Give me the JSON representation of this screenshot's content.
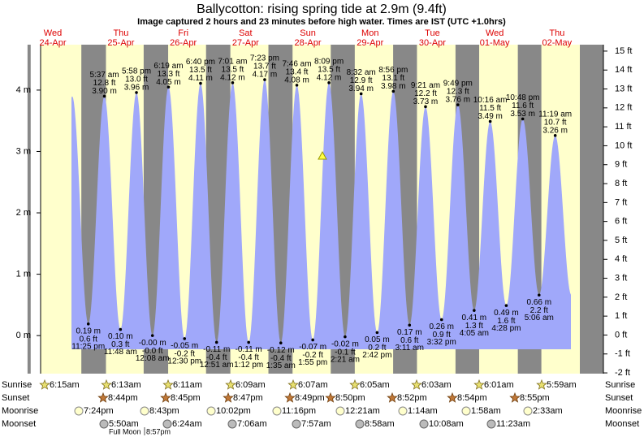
{
  "chart_data": {
    "type": "tide",
    "title": "Ballycotton: rising  spring tide at 2.9m (9.4ft)",
    "subtitle": "Image captured 2 hours and 23 minutes before high water. Times are IST (UTC +1.0hrs)",
    "days": [
      {
        "weekday": "Wed",
        "date": "24-Apr"
      },
      {
        "weekday": "Thu",
        "date": "25-Apr"
      },
      {
        "weekday": "Fri",
        "date": "26-Apr"
      },
      {
        "weekday": "Sat",
        "date": "27-Apr"
      },
      {
        "weekday": "Sun",
        "date": "28-Apr"
      },
      {
        "weekday": "Mon",
        "date": "29-Apr"
      },
      {
        "weekday": "Tue",
        "date": "30-Apr"
      },
      {
        "weekday": "Wed",
        "date": "01-May"
      },
      {
        "weekday": "Thu",
        "date": "02-May"
      }
    ],
    "tides": [
      {
        "time": "11:25 pm",
        "m": 0.19,
        "m_label": "0.19 m",
        "ft_label": "0.6 ft"
      },
      {
        "time": "5:37 am",
        "m": 3.9,
        "m_label": "3.90 m",
        "ft_label": "12.8 ft"
      },
      {
        "time": "11:48 am",
        "m": 0.1,
        "m_label": "0.10 m",
        "ft_label": "0.3 ft"
      },
      {
        "time": "5:58 pm",
        "m": 3.96,
        "m_label": "3.96 m",
        "ft_label": "13.0 ft"
      },
      {
        "time": "12:08 am",
        "m": 0,
        "m_label": "-0.00 m",
        "ft_label": "-0.0 ft"
      },
      {
        "time": "6:19 am",
        "m": 4.05,
        "m_label": "4.05 m",
        "ft_label": "13.3 ft"
      },
      {
        "time": "12:30 pm",
        "m": -0.05,
        "m_label": "-0.05 m",
        "ft_label": "-0.2 ft"
      },
      {
        "time": "6:40 pm",
        "m": 4.11,
        "m_label": "4.11 m",
        "ft_label": "13.5 ft"
      },
      {
        "time": "12:51 am",
        "m": -0.11,
        "m_label": "-0.11 m",
        "ft_label": "-0.4 ft"
      },
      {
        "time": "7:01 am",
        "m": 4.12,
        "m_label": "4.12 m",
        "ft_label": "13.5 ft"
      },
      {
        "time": "1:12 pm",
        "m": -0.11,
        "m_label": "-0.11 m",
        "ft_label": "-0.4 ft"
      },
      {
        "time": "7:23 pm",
        "m": 4.17,
        "m_label": "4.17 m",
        "ft_label": "13.7 ft"
      },
      {
        "time": "1:35 am",
        "m": -0.12,
        "m_label": "-0.12 m",
        "ft_label": "-0.4 ft"
      },
      {
        "time": "7:46 am",
        "m": 4.08,
        "m_label": "4.08 m",
        "ft_label": "13.4 ft"
      },
      {
        "time": "1:55 pm",
        "m": -0.07,
        "m_label": "-0.07 m",
        "ft_label": "-0.2 ft"
      },
      {
        "time": "8:09 pm",
        "m": 4.12,
        "m_label": "4.12 m",
        "ft_label": "13.5 ft"
      },
      {
        "time": "2:21 am",
        "m": -0.02,
        "m_label": "-0.02 m",
        "ft_label": "-0.1 ft"
      },
      {
        "time": "8:32 am",
        "m": 3.94,
        "m_label": "3.94 m",
        "ft_label": "12.9 ft"
      },
      {
        "time": "2:42 pm",
        "m": 0.05,
        "m_label": "0.05 m",
        "ft_label": "0.2 ft"
      },
      {
        "time": "8:56 pm",
        "m": 3.98,
        "m_label": "3.98 m",
        "ft_label": "13.1 ft"
      },
      {
        "time": "3:11 am",
        "m": 0.17,
        "m_label": "0.17 m",
        "ft_label": "0.6 ft"
      },
      {
        "time": "9:21 am",
        "m": 3.73,
        "m_label": "3.73 m",
        "ft_label": "12.2 ft"
      },
      {
        "time": "3:32 pm",
        "m": 0.26,
        "m_label": "0.26 m",
        "ft_label": "0.9 ft"
      },
      {
        "time": "9:49 pm",
        "m": 3.76,
        "m_label": "3.76 m",
        "ft_label": "12.3 ft"
      },
      {
        "time": "4:05 am",
        "m": 0.41,
        "m_label": "0.41 m",
        "ft_label": "1.3 ft"
      },
      {
        "time": "10:16 am",
        "m": 3.49,
        "m_label": "3.49 m",
        "ft_label": "11.5 ft"
      },
      {
        "time": "4:28 pm",
        "m": 0.49,
        "m_label": "0.49 m",
        "ft_label": "1.6 ft"
      },
      {
        "time": "10:48 pm",
        "m": 3.53,
        "m_label": "3.53 m",
        "ft_label": "11.6 ft"
      },
      {
        "time": "5:06 am",
        "m": 0.66,
        "m_label": "0.66 m",
        "ft_label": "2.2 ft"
      },
      {
        "time": "11:19 am",
        "m": 3.26,
        "m_label": "3.26 m",
        "ft_label": "10.7 ft"
      }
    ],
    "ylim": [
      -0.62,
      4.74
    ],
    "yticks": [
      {
        "value": 0,
        "label": "0 m"
      },
      {
        "value": 1,
        "label": "1 m"
      },
      {
        "value": 2,
        "label": "2 m"
      },
      {
        "value": 3,
        "label": "3 m"
      },
      {
        "value": 4,
        "label": "4 m"
      }
    ],
    "y2lim": [
      -2.04,
      15.34
    ],
    "y2ticks": [
      {
        "value": -2,
        "label": "-2 ft"
      },
      {
        "value": -1,
        "label": "-1 ft"
      },
      {
        "value": 0,
        "label": "0 ft"
      },
      {
        "value": 1,
        "label": "1 ft"
      },
      {
        "value": 2,
        "label": "2 ft"
      },
      {
        "value": 3,
        "label": "3 ft"
      },
      {
        "value": 4,
        "label": "4 ft"
      },
      {
        "value": 5,
        "label": "5 ft"
      },
      {
        "value": 6,
        "label": "6 ft"
      },
      {
        "value": 7,
        "label": "7 ft"
      },
      {
        "value": 8,
        "label": "8 ft"
      },
      {
        "value": 9,
        "label": "9 ft"
      },
      {
        "value": 10,
        "label": "10 ft"
      },
      {
        "value": 11,
        "label": "11 ft"
      },
      {
        "value": 12,
        "label": "12 ft"
      },
      {
        "value": 13,
        "label": "13 ft"
      },
      {
        "value": 14,
        "label": "14 ft"
      },
      {
        "value": 15,
        "label": "15 ft"
      }
    ],
    "tide_color": "#a0a8fa",
    "day_color": "#ffffcc",
    "night_color": "#888888",
    "rows": {
      "sunrise_label": "Sunrise",
      "sunset_label": "Sunset",
      "moonrise_label": "Moonrise",
      "moonset_label": "Moonset"
    },
    "sunrise": [
      "6:15am",
      "6:13am",
      "6:11am",
      "6:09am",
      "6:07am",
      "6:05am",
      "6:03am",
      "6:01am",
      "5:59am"
    ],
    "sunset": [
      "8:44pm",
      "8:45pm",
      "8:47pm",
      "8:49pm",
      "8:50pm",
      "8:52pm",
      "8:54pm",
      "8:55pm"
    ],
    "moonrise": [
      "7:24pm",
      "8:43pm",
      "10:02pm",
      "11:16pm",
      "12:21am",
      "1:14am",
      "1:58am",
      "2:33am"
    ],
    "moonset": [
      "5:50am",
      "6:24am",
      "7:06am",
      "7:57am",
      "8:58am",
      "10:08am",
      "11:23am"
    ],
    "full_moon": {
      "label": "Full Moon",
      "time": "8:57pm"
    }
  }
}
